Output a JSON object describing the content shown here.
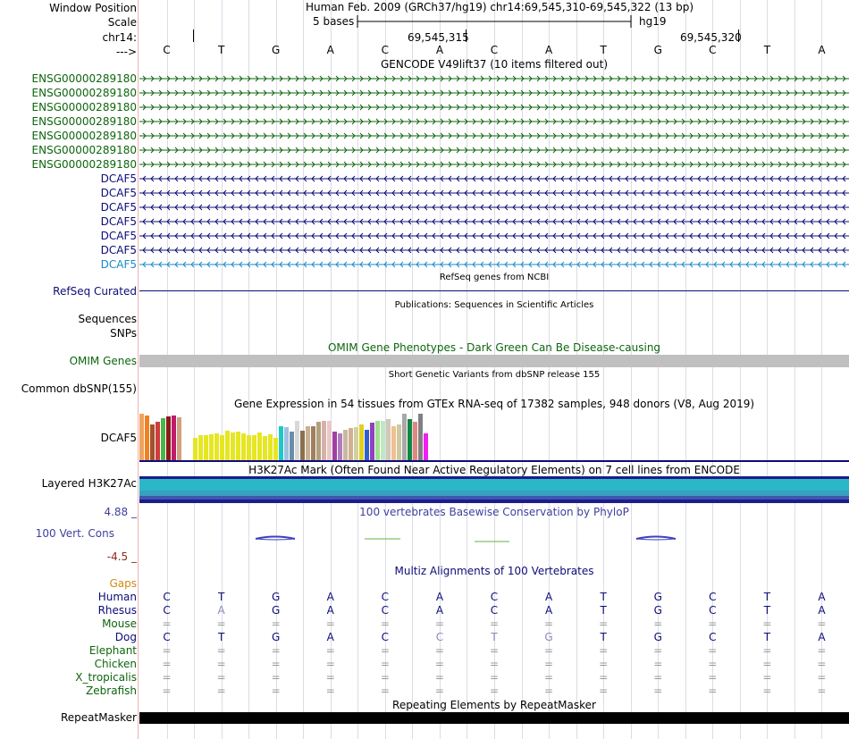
{
  "header": {
    "window_position_label": "Window Position",
    "window_position_value": "Human Feb. 2009 (GRCh37/hg19)   chr14:69,545,310-69,545,322 (13 bp)",
    "scale_label": "Scale",
    "scale_text": "5 bases",
    "assembly": "hg19",
    "chrom_label": "chr14:",
    "coord1": "69,545,315",
    "coord2": "69,545,320",
    "strand_label": "--->"
  },
  "bases": [
    "C",
    "T",
    "G",
    "A",
    "C",
    "A",
    "C",
    "A",
    "T",
    "G",
    "C",
    "T",
    "A"
  ],
  "gencode": {
    "title": "GENCODE V49lift37 (10 items filtered out)",
    "items": [
      {
        "name": "ENSG00000289180",
        "strand": "+",
        "color": "#0d660d"
      },
      {
        "name": "ENSG00000289180",
        "strand": "+",
        "color": "#0d660d"
      },
      {
        "name": "ENSG00000289180",
        "strand": "+",
        "color": "#0d660d"
      },
      {
        "name": "ENSG00000289180",
        "strand": "+",
        "color": "#0d660d"
      },
      {
        "name": "ENSG00000289180",
        "strand": "+",
        "color": "#0d660d"
      },
      {
        "name": "ENSG00000289180",
        "strand": "+",
        "color": "#0d660d"
      },
      {
        "name": "ENSG00000289180",
        "strand": "+",
        "color": "#0d660d"
      },
      {
        "name": "DCAF5",
        "strand": "-",
        "color": "#0c0c78"
      },
      {
        "name": "DCAF5",
        "strand": "-",
        "color": "#0c0c78"
      },
      {
        "name": "DCAF5",
        "strand": "-",
        "color": "#0c0c78"
      },
      {
        "name": "DCAF5",
        "strand": "-",
        "color": "#0c0c78"
      },
      {
        "name": "DCAF5",
        "strand": "-",
        "color": "#0c0c78"
      },
      {
        "name": "DCAF5",
        "strand": "-",
        "color": "#0c0c78"
      },
      {
        "name": "DCAF5",
        "strand": "-",
        "color": "#1a8acb"
      }
    ]
  },
  "refseq": {
    "title": "RefSeq genes from NCBI",
    "label": "RefSeq Curated"
  },
  "publications": {
    "title": "Publications: Sequences in Scientific Articles",
    "label1": "Sequences",
    "label2": "SNPs"
  },
  "omim": {
    "title": "OMIM Gene Phenotypes - Dark Green Can Be Disease-causing",
    "label": "OMIM Genes"
  },
  "dbsnp": {
    "title": "Short Genetic Variants from dbSNP release 155",
    "label": "Common dbSNP(155)"
  },
  "gtex": {
    "title": "Gene Expression in 54 tissues from GTEx RNA-seq of 17382 samples, 948 donors (V8, Aug 2019)",
    "label": "DCAF5",
    "colors": [
      "#f0a35e",
      "#f08020",
      "#a0522d",
      "#d13c3c",
      "#4ab54a",
      "#8b1a1a",
      "#c01b6b",
      "#d2a080",
      "#ffffff",
      "#ffffff",
      "#e6e622",
      "#e6e622",
      "#e6e622",
      "#e6e622",
      "#e6e622",
      "#e6e622",
      "#e6e622",
      "#e6e622",
      "#e6e622",
      "#e6e622",
      "#e6e622",
      "#e6e622",
      "#e6e622",
      "#e6e622",
      "#e6e622",
      "#e6e622",
      "#1fc8c8",
      "#a0c0e0",
      "#6b8ea8",
      "#d8d8d8",
      "#8a7050",
      "#c8b090",
      "#a08060",
      "#b0a080",
      "#d8b0a8",
      "#e8c8c8",
      "#a040a0",
      "#b07bc0",
      "#c8b8a0",
      "#d0b090",
      "#d0d0a0",
      "#e0d020",
      "#3060d0",
      "#9040c0",
      "#a0e090",
      "#c0e8c0",
      "#d0c8b8",
      "#f0c090",
      "#d0c8a0",
      "#a8a8a8",
      "#108840",
      "#e08880",
      "#808080",
      "#f020f0"
    ],
    "values": [
      52,
      50,
      40,
      43,
      47,
      49,
      50,
      48,
      0,
      0,
      25,
      28,
      28,
      29,
      30,
      28,
      33,
      31,
      32,
      30,
      28,
      28,
      31,
      27,
      29,
      25,
      38,
      37,
      32,
      44,
      33,
      38,
      38,
      43,
      44,
      44,
      32,
      30,
      34,
      36,
      37,
      40,
      34,
      42,
      44,
      44,
      46,
      38,
      40,
      52,
      46,
      43,
      52,
      30
    ]
  },
  "h3k27ac": {
    "title": "H3K27Ac Mark (Often Found Near Active Regulatory Elements) on 7 cell lines from ENCODE",
    "label": "Layered H3K27Ac"
  },
  "phylop": {
    "title": "100 vertebrates Basewise Conservation by PhyloP",
    "label": "100 Vert. Cons",
    "max": "4.88 _",
    "min": "-4.5 _"
  },
  "multiz": {
    "title": "Multiz Alignments of 100 Vertebrates",
    "gaps_label": "Gaps",
    "species": [
      {
        "name": "Human",
        "color": "#0c0c78",
        "seq": [
          "C",
          "T",
          "G",
          "A",
          "C",
          "A",
          "C",
          "A",
          "T",
          "G",
          "C",
          "T",
          "A"
        ]
      },
      {
        "name": "Rhesus",
        "color": "#0c0c78",
        "seq": [
          "C",
          "A",
          "G",
          "A",
          "C",
          "A",
          "C",
          "A",
          "T",
          "G",
          "C",
          "T",
          "A"
        ]
      },
      {
        "name": "Mouse",
        "color": "#0d660d",
        "seq": [
          "=",
          "=",
          "=",
          "=",
          "=",
          "=",
          "=",
          "=",
          "=",
          "=",
          "=",
          "=",
          "="
        ]
      },
      {
        "name": "Dog",
        "color": "#0c0c78",
        "seq": [
          "C",
          "T",
          "G",
          "A",
          "C",
          "C",
          "T",
          "G",
          "T",
          "G",
          "C",
          "T",
          "A"
        ]
      },
      {
        "name": "Elephant",
        "color": "#0d660d",
        "seq": [
          "=",
          "=",
          "=",
          "=",
          "=",
          "=",
          "=",
          "=",
          "=",
          "=",
          "=",
          "=",
          "="
        ]
      },
      {
        "name": "Chicken",
        "color": "#0d660d",
        "seq": [
          "=",
          "=",
          "=",
          "=",
          "=",
          "=",
          "=",
          "=",
          "=",
          "=",
          "=",
          "=",
          "="
        ]
      },
      {
        "name": "X_tropicalis",
        "color": "#0d660d",
        "seq": [
          "=",
          "=",
          "=",
          "=",
          "=",
          "=",
          "=",
          "=",
          "=",
          "=",
          "=",
          "=",
          "="
        ]
      },
      {
        "name": "Zebrafish",
        "color": "#0d660d",
        "seq": [
          "=",
          "=",
          "=",
          "=",
          "=",
          "=",
          "=",
          "=",
          "=",
          "=",
          "=",
          "=",
          "="
        ]
      }
    ]
  },
  "repeatmasker": {
    "title": "Repeating Elements by RepeatMasker",
    "label": "RepeatMasker"
  }
}
